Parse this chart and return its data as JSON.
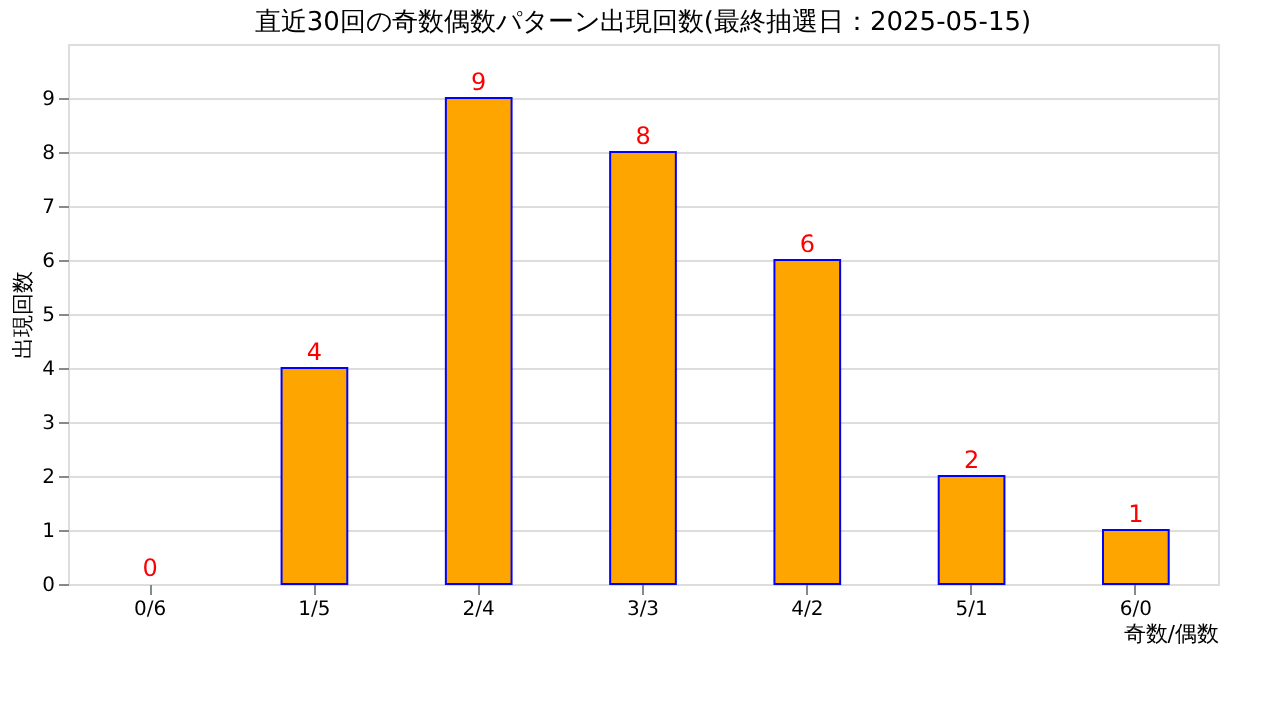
{
  "chart_data": {
    "type": "bar",
    "title": "直近30回の奇数偶数パターン出現回数(最終抽選日：2025-05-15)",
    "xlabel": "奇数/偶数",
    "ylabel": "出現回数",
    "categories": [
      "0/6",
      "1/5",
      "2/4",
      "3/3",
      "4/2",
      "5/1",
      "6/0"
    ],
    "values": [
      0,
      4,
      9,
      8,
      6,
      2,
      1
    ],
    "color": "#ffa500",
    "ylim": [
      0,
      10
    ],
    "yticks": [
      0,
      1,
      2,
      3,
      4,
      5,
      6,
      7,
      8,
      9
    ],
    "grid": "y",
    "data_labels": true
  }
}
